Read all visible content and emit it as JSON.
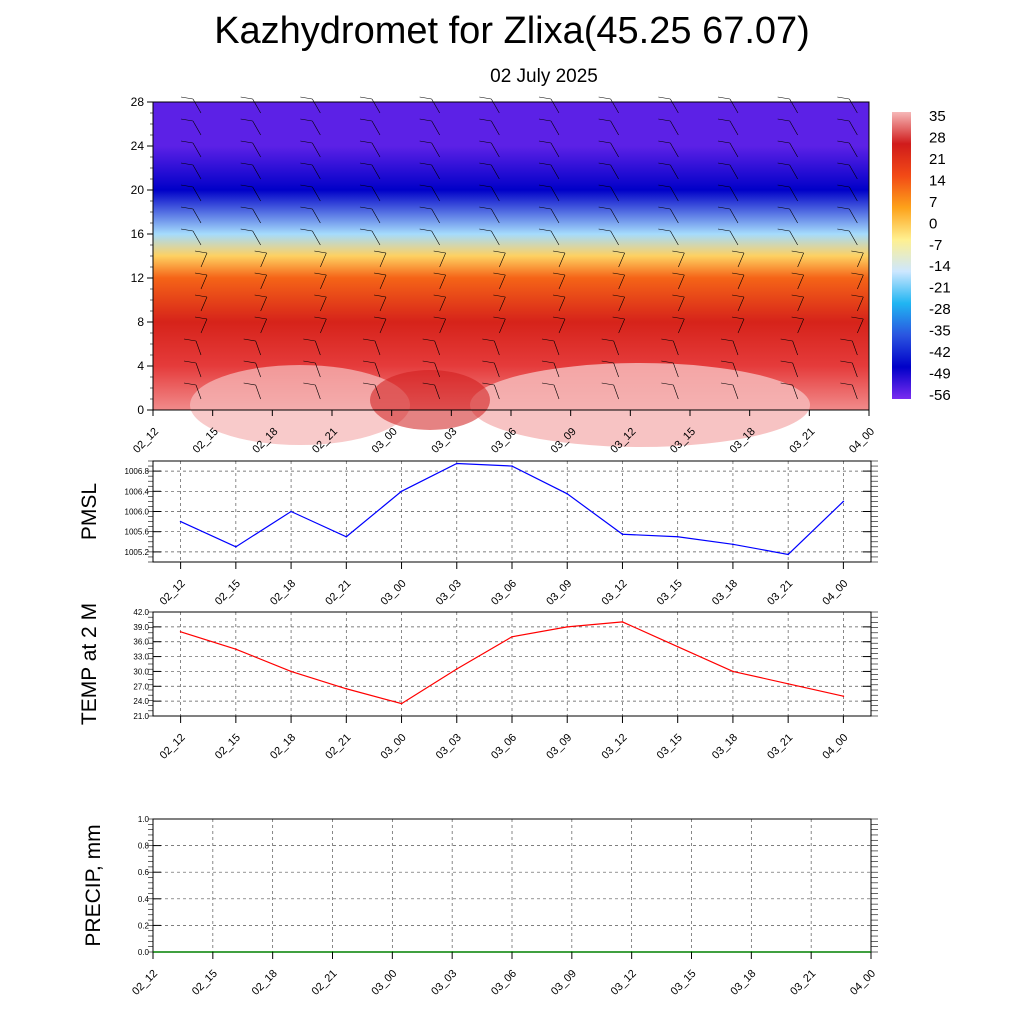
{
  "title": "Kazhydromet for Zlixa(45.25 67.07)",
  "subtitle": "02 July 2025",
  "chart_data": [
    {
      "type": "heatmap",
      "name": "cross-section",
      "x_ticks": [
        "02_12",
        "02_15",
        "02_18",
        "02_21",
        "03_00",
        "03_03",
        "03_06",
        "03_09",
        "03_12",
        "03_15",
        "03_18",
        "03_21",
        "04_00"
      ],
      "y_ticks": [
        0,
        4,
        8,
        12,
        16,
        20,
        24,
        28
      ],
      "ylim": [
        0,
        28
      ],
      "colorbar": {
        "labels": [
          "35",
          "28",
          "21",
          "14",
          "7",
          "0",
          "-7",
          "-14",
          "-21",
          "-28",
          "-35",
          "-42",
          "-49",
          "-56"
        ],
        "colors": [
          "#f6b8b8",
          "#d01b1b",
          "#f24a16",
          "#fda21a",
          "#fff090",
          "#cde7ff",
          "#20b5f2",
          "#2a55e0",
          "#0000c8",
          "#7a2cf0"
        ]
      },
      "temperature_profile": [
        {
          "level": 0,
          "value": 33
        },
        {
          "level": 4,
          "value": 27
        },
        {
          "level": 8,
          "value": 18
        },
        {
          "level": 12,
          "value": 5
        },
        {
          "level": 14,
          "value": -8
        },
        {
          "level": 16,
          "value": -25
        },
        {
          "level": 20,
          "value": -52
        },
        {
          "level": 24,
          "value": -58
        },
        {
          "level": 28,
          "value": -58
        }
      ]
    },
    {
      "type": "line",
      "ylabel": "PMSL",
      "categories": [
        "02_12",
        "02_15",
        "02_18",
        "02_21",
        "03_00",
        "03_03",
        "03_06",
        "03_09",
        "03_12",
        "03_15",
        "03_18",
        "03_21",
        "04_00"
      ],
      "series": [
        {
          "values": [
            1005.8,
            1005.3,
            1006.0,
            1005.5,
            1006.4,
            1006.95,
            1006.9,
            1006.35,
            1005.55,
            1005.5,
            1005.35,
            1005.15,
            1006.2
          ],
          "color": "#0000ff"
        }
      ],
      "ylim": [
        1005.0,
        1007.0
      ],
      "y_ticks": [
        "1005.2",
        "1005.6",
        "1006.0",
        "1006.4",
        "1006.8"
      ],
      "grid": true
    },
    {
      "type": "line",
      "ylabel": "TEMP at 2 M",
      "categories": [
        "02_12",
        "02_15",
        "02_18",
        "02_21",
        "03_00",
        "03_03",
        "03_06",
        "03_09",
        "03_12",
        "03_15",
        "03_18",
        "03_21",
        "04_00"
      ],
      "series": [
        {
          "values": [
            38.0,
            34.5,
            30.0,
            26.5,
            23.5,
            30.5,
            37.0,
            39.0,
            40.0,
            35.0,
            30.0,
            27.5,
            25.0
          ],
          "color": "#ff0000"
        }
      ],
      "ylim": [
        21.0,
        42.0
      ],
      "y_ticks": [
        "21.0",
        "24.0",
        "27.0",
        "30.0",
        "33.0",
        "36.0",
        "39.0",
        "42.0"
      ],
      "grid": true
    },
    {
      "type": "line",
      "ylabel": "PRECIP, mm",
      "categories": [
        "02_12",
        "02_15",
        "02_18",
        "02_21",
        "03_00",
        "03_03",
        "03_06",
        "03_09",
        "03_12",
        "03_15",
        "03_18",
        "03_21",
        "04_00"
      ],
      "series": [
        {
          "values": [
            0,
            0,
            0,
            0,
            0,
            0,
            0,
            0,
            0,
            0,
            0,
            0,
            0
          ],
          "color": "#008000"
        }
      ],
      "ylim": [
        0.0,
        1.0
      ],
      "y_ticks": [
        "0.0",
        "0.2",
        "0.4",
        "0.6",
        "0.8",
        "1.0"
      ],
      "grid": true
    }
  ]
}
